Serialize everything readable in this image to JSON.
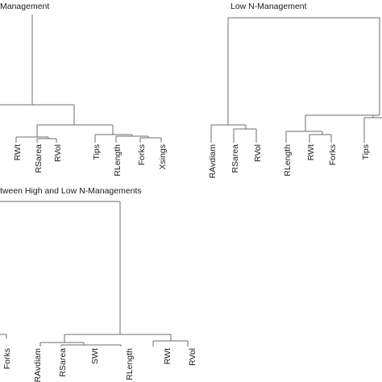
{
  "panels": [
    {
      "id": "high",
      "title": "Management",
      "leaves": [
        "RWt",
        "RSarea",
        "RVol",
        "Tips",
        "RLength",
        "Forks",
        "Xsings"
      ]
    },
    {
      "id": "low",
      "title": "Low N-Management",
      "leaves": [
        "RAvdiam",
        "RSarea",
        "RVol",
        "RLength",
        "RWt",
        "Forks",
        "Tips"
      ]
    },
    {
      "id": "between",
      "title": "tween High and Low  N-Managements",
      "leaves": [
        "Forks",
        "RAvdiam",
        "RSarea",
        "SWt",
        "RLength",
        "RWt",
        "RVol"
      ]
    }
  ]
}
